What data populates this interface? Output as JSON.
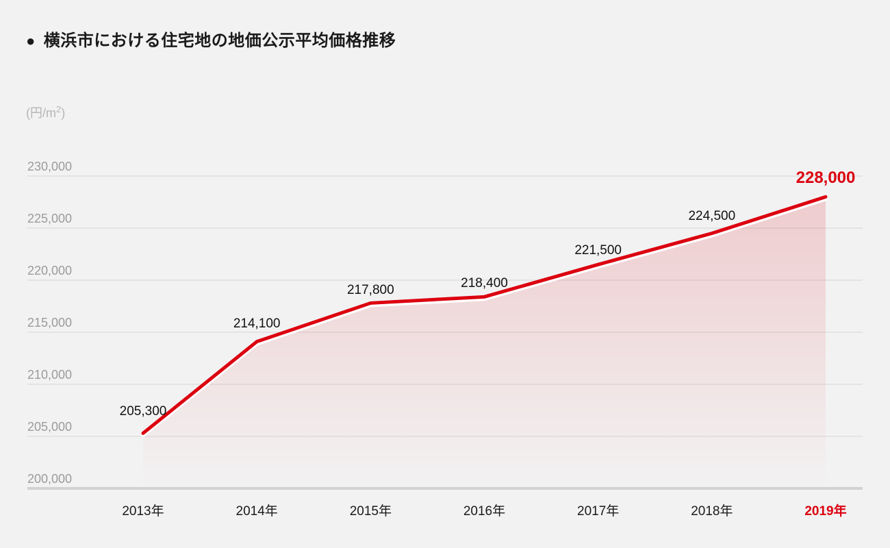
{
  "title": {
    "bullet": "●",
    "text": "横浜市における住宅地の地価公示平均価格推移"
  },
  "unit": {
    "prefix": "(円/m",
    "sup": "2",
    "suffix": ")"
  },
  "chart_data": {
    "type": "area",
    "title": "横浜市における住宅地の地価公示平均価格推移",
    "ylabel": "(円/m²)",
    "xlabel": "",
    "categories": [
      "2013年",
      "2014年",
      "2015年",
      "2016年",
      "2017年",
      "2018年",
      "2019年"
    ],
    "values": [
      205300,
      214100,
      217800,
      218400,
      221500,
      224500,
      228000
    ],
    "value_labels": [
      "205,300",
      "214,100",
      "217,800",
      "218,400",
      "221,500",
      "224,500",
      "228,000"
    ],
    "ylim": [
      200000,
      230000
    ],
    "ytick_step": 5000,
    "yticks": {
      "values": [
        230000,
        225000,
        220000,
        215000,
        210000,
        205000,
        200000
      ],
      "labels": [
        "230,000",
        "225,000",
        "220,000",
        "215,000",
        "210,000",
        "205,000",
        "200,000"
      ]
    },
    "grid": "horizontal",
    "legend": "none",
    "highlight_index": 6,
    "highlight_category": "2019年",
    "highlight_value_label": "228,000"
  },
  "colors": {
    "line": "#dc000f",
    "casing": "#ffffff",
    "area_top": "rgba(220,0,15,0.17)",
    "area_bottom": "rgba(220,0,15,0)",
    "background": "#f2f2f2",
    "title_text": "#1a1a1a",
    "y_tick": "#9b9b9b",
    "x_tick": "#1a1a1a",
    "data_label": "#111111",
    "unit_text": "#b5b5b5",
    "gridline": "#e4e4e4",
    "axis_line": "#d2d2d2"
  }
}
